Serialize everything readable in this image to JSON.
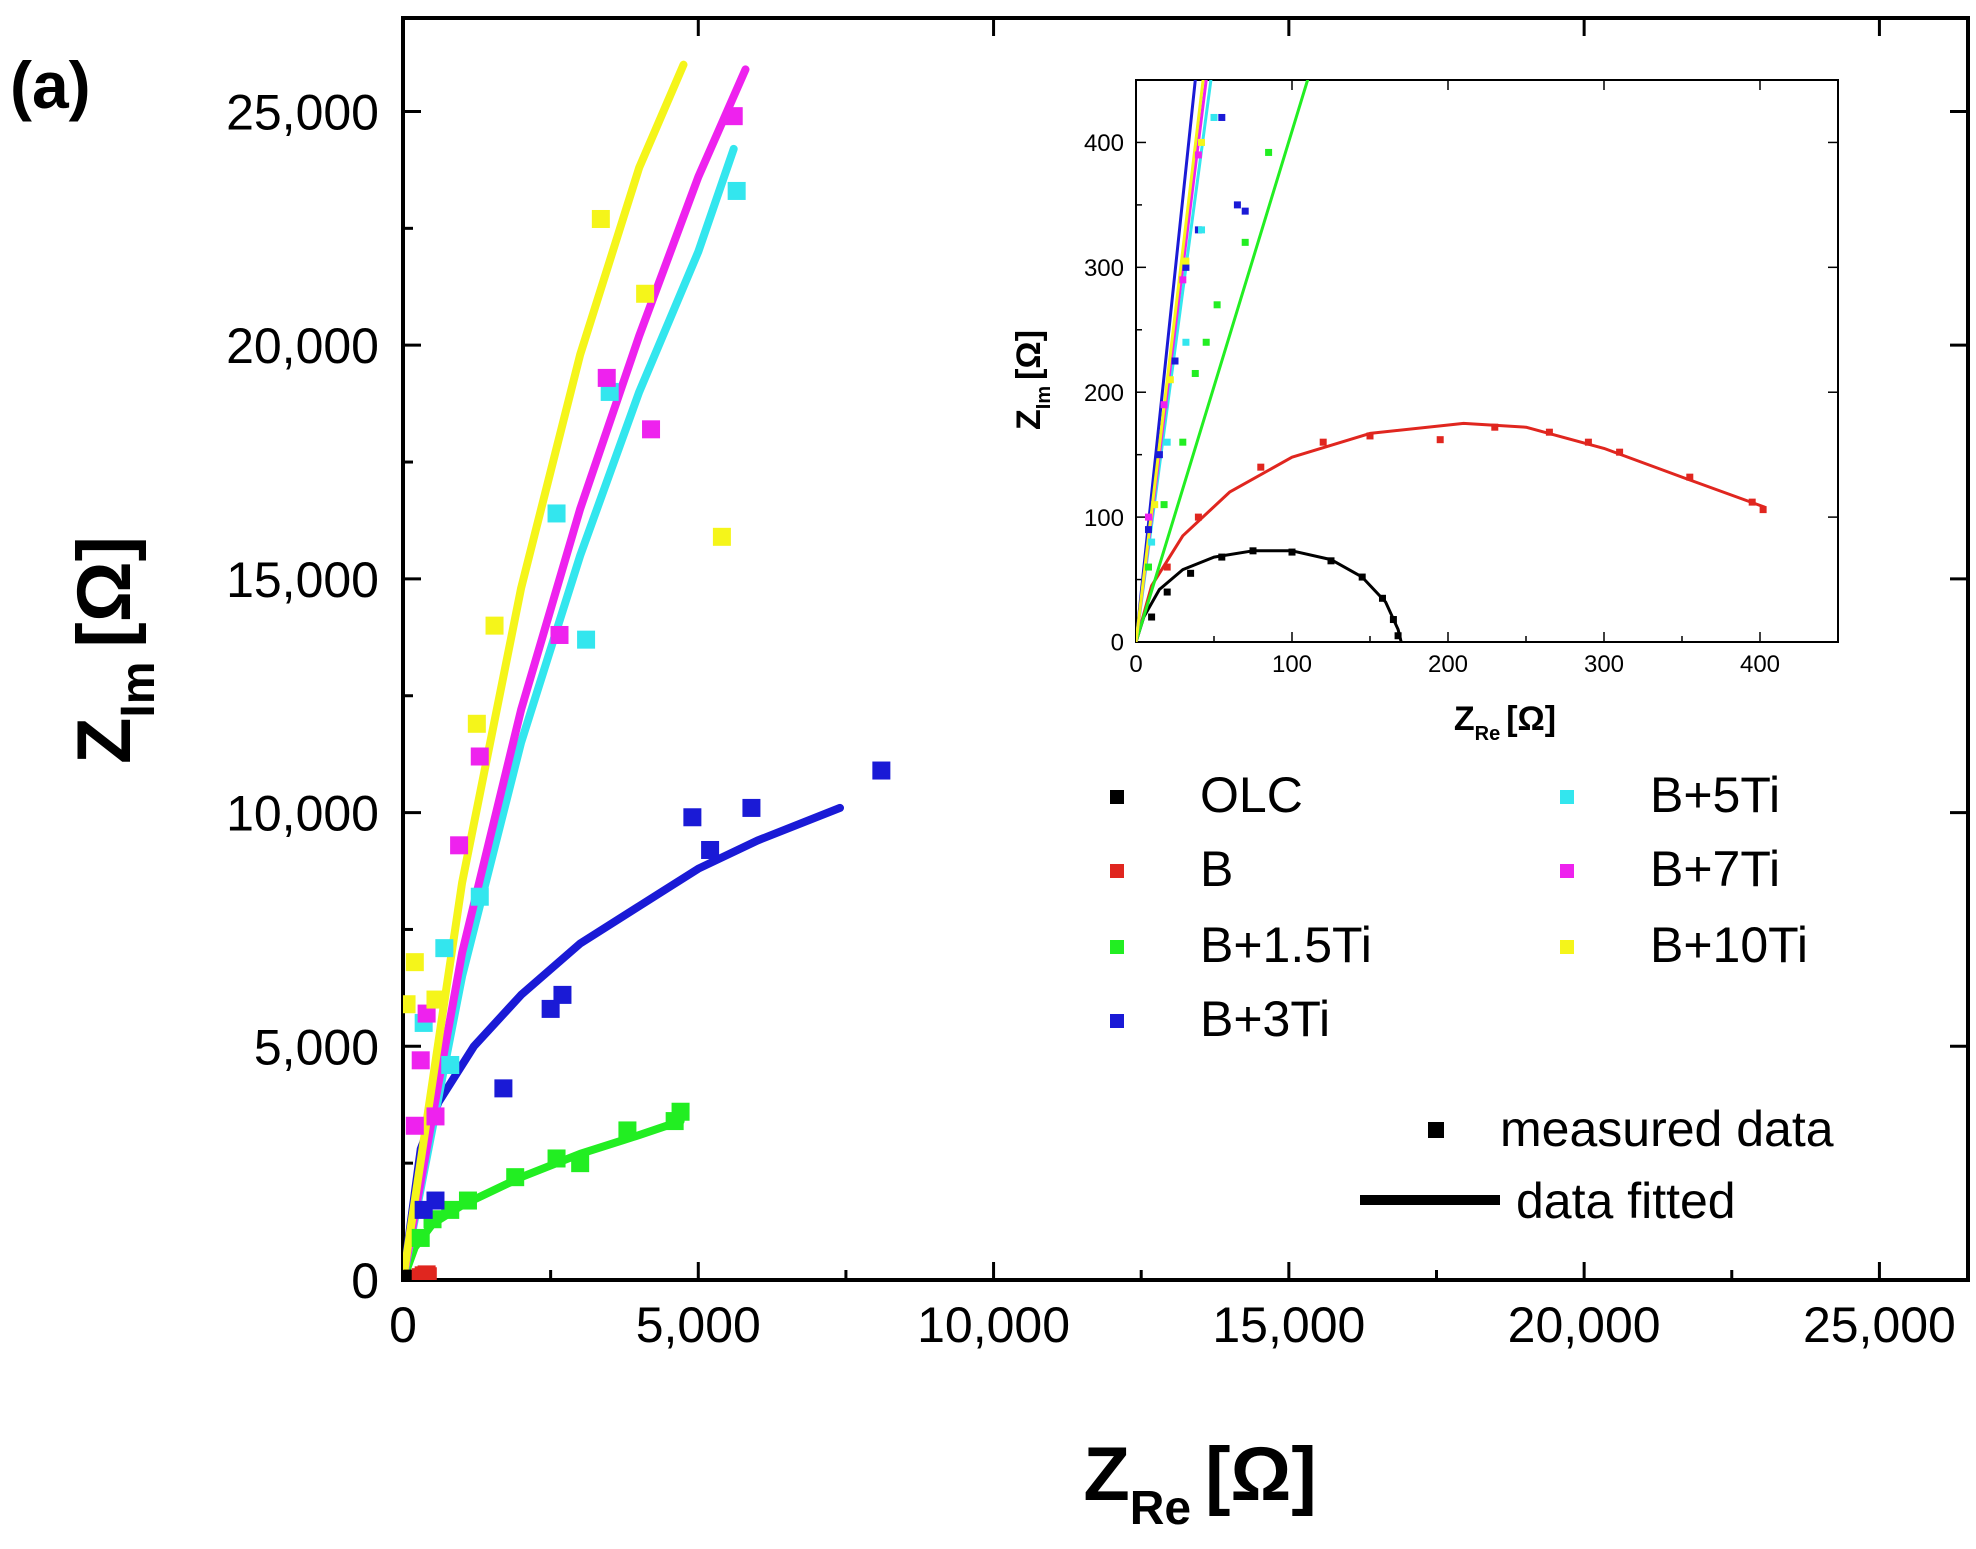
{
  "panel_label": "(a)",
  "colors": {
    "OLC": "#000000",
    "B": "#e0261f",
    "B+1.5Ti": "#22ee22",
    "B+3Ti": "#1a1ad6",
    "B+5Ti": "#33e6ee",
    "B+7Ti": "#ee22ee",
    "B+10Ti": "#f5f51a"
  },
  "chart_data": [
    {
      "id": "main",
      "type": "scatter",
      "xlabel": "Z_Re [Ω]",
      "xlabel_main": "Z",
      "xlabel_sub": "Re",
      "xlabel_unit": "[Ω]",
      "ylabel": "Z_Im [Ω]",
      "ylabel_main": "Z",
      "ylabel_sub": "Im",
      "ylabel_unit": "[Ω]",
      "xlim": [
        0,
        26500
      ],
      "ylim": [
        0,
        27000
      ],
      "xticks": [
        0,
        5000,
        10000,
        15000,
        20000,
        25000
      ],
      "xtick_labels": [
        "0",
        "5,000",
        "10,000",
        "15,000",
        "20,000",
        "25,000"
      ],
      "yticks": [
        0,
        5000,
        10000,
        15000,
        20000,
        25000
      ],
      "ytick_labels": [
        "0",
        "5,000",
        "10,000",
        "15,000",
        "20,000",
        "25,000"
      ],
      "series": [
        {
          "name": "OLC",
          "measured": [
            [
              60,
              10
            ],
            [
              120,
              20
            ],
            [
              160,
              30
            ]
          ],
          "fitted": [
            [
              0,
              0
            ],
            [
              170,
              40
            ]
          ]
        },
        {
          "name": "B",
          "measured": [
            [
              300,
              60
            ],
            [
              350,
              100
            ],
            [
              400,
              120
            ],
            [
              420,
              80
            ]
          ],
          "fitted": [
            [
              0,
              0
            ],
            [
              200,
              100
            ],
            [
              400,
              110
            ]
          ]
        },
        {
          "name": "B+1.5Ti",
          "measured": [
            [
              300,
              900
            ],
            [
              500,
              1300
            ],
            [
              800,
              1500
            ],
            [
              1100,
              1700
            ],
            [
              1900,
              2200
            ],
            [
              2600,
              2600
            ],
            [
              3000,
              2500
            ],
            [
              3800,
              3200
            ],
            [
              4600,
              3400
            ],
            [
              4700,
              3600
            ]
          ],
          "fitted": [
            [
              0,
              0
            ],
            [
              200,
              700
            ],
            [
              500,
              1200
            ],
            [
              1000,
              1600
            ],
            [
              2000,
              2200
            ],
            [
              3000,
              2700
            ],
            [
              4000,
              3100
            ],
            [
              4700,
              3400
            ]
          ]
        },
        {
          "name": "B+3Ti",
          "measured": [
            [
              350,
              1500
            ],
            [
              550,
              1700
            ],
            [
              1700,
              4100
            ],
            [
              2500,
              5800
            ],
            [
              2700,
              6100
            ],
            [
              4900,
              9900
            ],
            [
              5200,
              9200
            ],
            [
              5900,
              10100
            ],
            [
              8100,
              10900
            ]
          ],
          "fitted": [
            [
              0,
              0
            ],
            [
              300,
              2800
            ],
            [
              600,
              3800
            ],
            [
              1200,
              5000
            ],
            [
              2000,
              6100
            ],
            [
              3000,
              7200
            ],
            [
              4000,
              8000
            ],
            [
              5000,
              8800
            ],
            [
              6000,
              9400
            ],
            [
              7400,
              10100
            ]
          ]
        },
        {
          "name": "B+5Ti",
          "measured": [
            [
              350,
              5500
            ],
            [
              700,
              7100
            ],
            [
              800,
              4600
            ],
            [
              1300,
              8200
            ],
            [
              2600,
              16400
            ],
            [
              3100,
              13700
            ],
            [
              3500,
              19000
            ],
            [
              5650,
              23300
            ]
          ],
          "fitted": [
            [
              0,
              0
            ],
            [
              1000,
              6500
            ],
            [
              2000,
              11500
            ],
            [
              3000,
              15500
            ],
            [
              4000,
              19000
            ],
            [
              5000,
              22000
            ],
            [
              5600,
              24200
            ]
          ]
        },
        {
          "name": "B+7Ti",
          "measured": [
            [
              200,
              3300
            ],
            [
              300,
              4700
            ],
            [
              400,
              5700
            ],
            [
              550,
              3500
            ],
            [
              950,
              9300
            ],
            [
              1300,
              11200
            ],
            [
              2650,
              13800
            ],
            [
              3450,
              19300
            ],
            [
              4200,
              18200
            ],
            [
              5600,
              24900
            ]
          ],
          "fitted": [
            [
              0,
              0
            ],
            [
              1000,
              7000
            ],
            [
              2000,
              12200
            ],
            [
              3000,
              16500
            ],
            [
              4000,
              20200
            ],
            [
              5000,
              23600
            ],
            [
              5800,
              25900
            ]
          ]
        },
        {
          "name": "B+10Ti",
          "measured": [
            [
              60,
              5900
            ],
            [
              200,
              6800
            ],
            [
              550,
              6000
            ],
            [
              1250,
              11900
            ],
            [
              1550,
              14000
            ],
            [
              3350,
              22700
            ],
            [
              4100,
              21100
            ],
            [
              5400,
              15900
            ]
          ],
          "fitted": [
            [
              0,
              0
            ],
            [
              1000,
              8500
            ],
            [
              2000,
              14800
            ],
            [
              3000,
              19800
            ],
            [
              4000,
              23800
            ],
            [
              4750,
              26000
            ]
          ]
        }
      ]
    },
    {
      "id": "inset",
      "type": "scatter",
      "xlabel": "Z_Re [Ω]",
      "xlabel_main": "Z",
      "xlabel_sub": "Re",
      "xlabel_unit": "[Ω]",
      "ylabel": "Z_Im [Ω]",
      "ylabel_main": "Z",
      "ylabel_sub": "Im",
      "ylabel_unit": "[Ω]",
      "xlim": [
        0,
        450
      ],
      "ylim": [
        0,
        450
      ],
      "xticks": [
        0,
        100,
        200,
        300,
        400
      ],
      "xtick_labels": [
        "0",
        "100",
        "200",
        "300",
        "400"
      ],
      "yticks": [
        0,
        100,
        200,
        300,
        400
      ],
      "ytick_labels": [
        "0",
        "100",
        "200",
        "300",
        "400"
      ],
      "series": [
        {
          "name": "OLC",
          "measured": [
            [
              10,
              20
            ],
            [
              20,
              40
            ],
            [
              35,
              55
            ],
            [
              55,
              68
            ],
            [
              75,
              73
            ],
            [
              100,
              72
            ],
            [
              125,
              65
            ],
            [
              145,
              52
            ],
            [
              158,
              35
            ],
            [
              165,
              18
            ],
            [
              168,
              5
            ]
          ],
          "fitted": [
            [
              0,
              0
            ],
            [
              5,
              20
            ],
            [
              15,
              42
            ],
            [
              30,
              58
            ],
            [
              50,
              68
            ],
            [
              75,
              73
            ],
            [
              100,
              73
            ],
            [
              125,
              66
            ],
            [
              145,
              52
            ],
            [
              160,
              32
            ],
            [
              168,
              10
            ],
            [
              170,
              0
            ]
          ]
        },
        {
          "name": "B",
          "measured": [
            [
              20,
              60
            ],
            [
              40,
              100
            ],
            [
              80,
              140
            ],
            [
              120,
              160
            ],
            [
              150,
              165
            ],
            [
              195,
              162
            ],
            [
              230,
              172
            ],
            [
              265,
              168
            ],
            [
              290,
              160
            ],
            [
              310,
              152
            ],
            [
              355,
              132
            ],
            [
              395,
              112
            ],
            [
              402,
              106
            ]
          ],
          "fitted": [
            [
              0,
              0
            ],
            [
              10,
              45
            ],
            [
              30,
              85
            ],
            [
              60,
              120
            ],
            [
              100,
              148
            ],
            [
              150,
              167
            ],
            [
              210,
              175
            ],
            [
              250,
              172
            ],
            [
              300,
              155
            ],
            [
              350,
              132
            ],
            [
              403,
              108
            ]
          ]
        },
        {
          "name": "B+1.5Ti",
          "measured": [
            [
              8,
              60
            ],
            [
              18,
              110
            ],
            [
              30,
              160
            ],
            [
              38,
              215
            ],
            [
              45,
              240
            ],
            [
              52,
              270
            ],
            [
              70,
              320
            ],
            [
              85,
              392
            ]
          ],
          "fitted": [
            [
              0,
              0
            ],
            [
              110,
              450
            ]
          ]
        },
        {
          "name": "B+3Ti",
          "measured": [
            [
              8,
              90
            ],
            [
              15,
              150
            ],
            [
              25,
              225
            ],
            [
              32,
              300
            ],
            [
              40,
              330
            ],
            [
              55,
              420
            ],
            [
              65,
              350
            ],
            [
              70,
              345
            ]
          ],
          "fitted": [
            [
              0,
              0
            ],
            [
              38,
              450
            ]
          ]
        },
        {
          "name": "B+5Ti",
          "measured": [
            [
              10,
              80
            ],
            [
              20,
              160
            ],
            [
              32,
              240
            ],
            [
              42,
              330
            ],
            [
              50,
              420
            ]
          ],
          "fitted": [
            [
              0,
              0
            ],
            [
              48,
              450
            ]
          ]
        },
        {
          "name": "B+7Ti",
          "measured": [
            [
              8,
              100
            ],
            [
              18,
              190
            ],
            [
              30,
              290
            ],
            [
              40,
              390
            ]
          ],
          "fitted": [
            [
              0,
              0
            ],
            [
              45,
              450
            ]
          ]
        },
        {
          "name": "B+10Ti",
          "measured": [
            [
              12,
              110
            ],
            [
              22,
              210
            ],
            [
              32,
              305
            ],
            [
              42,
              400
            ]
          ],
          "fitted": [
            [
              0,
              0
            ],
            [
              43,
              450
            ]
          ]
        }
      ]
    }
  ],
  "legend": {
    "position": "center-right",
    "entries": [
      "OLC",
      "B",
      "B+1.5Ti",
      "B+3Ti",
      "B+5Ti",
      "B+7Ti",
      "B+10Ti"
    ],
    "measured_label": "measured data",
    "fitted_label": "data fitted"
  }
}
